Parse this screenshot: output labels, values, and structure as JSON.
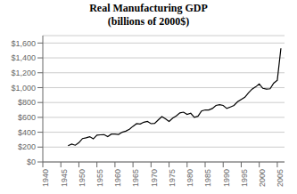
{
  "chart_data": {
    "type": "line",
    "title": "Real Manufacturing GDP",
    "subtitle": "(billions of 2000$)",
    "x": [
      1947,
      1948,
      1949,
      1950,
      1951,
      1952,
      1953,
      1954,
      1955,
      1956,
      1957,
      1958,
      1959,
      1960,
      1961,
      1962,
      1963,
      1964,
      1965,
      1966,
      1967,
      1968,
      1969,
      1970,
      1971,
      1972,
      1973,
      1974,
      1975,
      1976,
      1977,
      1978,
      1979,
      1980,
      1981,
      1982,
      1983,
      1984,
      1985,
      1986,
      1987,
      1988,
      1989,
      1990,
      1991,
      1992,
      1993,
      1994,
      1995,
      1996,
      1997,
      1998,
      1999,
      2000,
      2001,
      2002,
      2003,
      2004,
      2005,
      2006
    ],
    "values": [
      218,
      240,
      225,
      260,
      315,
      325,
      340,
      310,
      360,
      365,
      368,
      340,
      375,
      375,
      370,
      400,
      415,
      440,
      480,
      515,
      510,
      535,
      545,
      515,
      520,
      565,
      610,
      580,
      545,
      590,
      620,
      660,
      670,
      640,
      655,
      600,
      615,
      685,
      700,
      700,
      720,
      760,
      770,
      760,
      720,
      740,
      760,
      810,
      840,
      870,
      930,
      980,
      1010,
      1050,
      990,
      980,
      985,
      1060,
      1100,
      1530
    ],
    "color": "#000000",
    "xlim": [
      1940,
      2007
    ],
    "xticks": [
      1940,
      1945,
      1950,
      1955,
      1960,
      1965,
      1970,
      1975,
      1980,
      1985,
      1990,
      1995,
      2000,
      2005
    ],
    "ylim": [
      0,
      1700
    ],
    "yticks": [
      {
        "value": 0,
        "label": "$0"
      },
      {
        "value": 200,
        "label": "$200"
      },
      {
        "value": 400,
        "label": "$400"
      },
      {
        "value": 600,
        "label": "$600"
      },
      {
        "value": 800,
        "label": "$800"
      },
      {
        "value": 1000,
        "label": "$1,000"
      },
      {
        "value": 1200,
        "label": "$1,200"
      },
      {
        "value": 1400,
        "label": "$1,400"
      },
      {
        "value": 1600,
        "label": "$1,600"
      }
    ],
    "grid": true
  }
}
